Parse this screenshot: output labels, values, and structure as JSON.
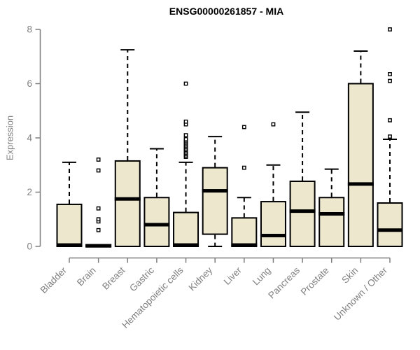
{
  "header": {
    "title": "ENSG00000261857 - MIA"
  },
  "colors": {
    "background": "#ffffff",
    "box_fill": "#EDE8CD",
    "box_border": "#000000",
    "median": "#000000",
    "whisker": "#000000",
    "outlier_stroke": "#000000",
    "outlier_fill": "#ffffff",
    "axis": "#7e7e7e",
    "tick_label": "#7f7f7f",
    "title_color": "#000000"
  },
  "chart_data": {
    "type": "boxplot",
    "title": "ENSG00000261857 - MIA",
    "xlabel": "",
    "ylabel": "Expression",
    "ylim": [
      0,
      8
    ],
    "yticks": [
      0,
      2,
      4,
      6,
      8
    ],
    "grid": false,
    "legend": "none",
    "categories": [
      "Bladder",
      "Brain",
      "Breast",
      "Gastric",
      "Hematopoietic cells",
      "Kidney",
      "Liver",
      "Lung",
      "Pancreas",
      "Prostate",
      "Skin",
      "Unknown / Other"
    ],
    "boxes": [
      {
        "category": "Bladder",
        "whisker_low": 0,
        "q1": 0,
        "median": 0.05,
        "q3": 1.55,
        "whisker_high": 3.1,
        "outliers": []
      },
      {
        "category": "Brain",
        "whisker_low": 0,
        "q1": 0,
        "median": 0.02,
        "q3": 0.06,
        "whisker_high": 0.06,
        "outliers": [
          0.6,
          0.92,
          1.0,
          1.4,
          2.8,
          3.2
        ]
      },
      {
        "category": "Breast",
        "whisker_low": 0,
        "q1": 0,
        "median": 1.75,
        "q3": 3.15,
        "whisker_high": 7.25,
        "outliers": []
      },
      {
        "category": "Gastric",
        "whisker_low": 0,
        "q1": 0,
        "median": 0.8,
        "q3": 1.8,
        "whisker_high": 3.6,
        "outliers": []
      },
      {
        "category": "Hematopoietic cells",
        "whisker_low": 0,
        "q1": 0,
        "median": 0.05,
        "q3": 1.25,
        "whisker_high": 3.1,
        "outliers": [
          3.3,
          3.35,
          3.4,
          3.45,
          3.5,
          3.55,
          3.6,
          3.65,
          3.7,
          3.75,
          3.8,
          3.85,
          3.9,
          3.95,
          4.1,
          4.5,
          4.6,
          6.0
        ]
      },
      {
        "category": "Kidney",
        "whisker_low": 0,
        "q1": 0.45,
        "median": 2.05,
        "q3": 2.9,
        "whisker_high": 4.05,
        "outliers": []
      },
      {
        "category": "Liver",
        "whisker_low": 0,
        "q1": 0,
        "median": 0.05,
        "q3": 1.05,
        "whisker_high": 1.8,
        "outliers": [
          2.9,
          4.4
        ]
      },
      {
        "category": "Lung",
        "whisker_low": 0,
        "q1": 0,
        "median": 0.4,
        "q3": 1.65,
        "whisker_high": 3.0,
        "outliers": [
          4.5
        ]
      },
      {
        "category": "Pancreas",
        "whisker_low": 0,
        "q1": 0,
        "median": 1.3,
        "q3": 2.4,
        "whisker_high": 4.95,
        "outliers": []
      },
      {
        "category": "Prostate",
        "whisker_low": 0,
        "q1": 0,
        "median": 1.2,
        "q3": 1.8,
        "whisker_high": 2.85,
        "outliers": []
      },
      {
        "category": "Skin",
        "whisker_low": 0,
        "q1": 0,
        "median": 2.3,
        "q3": 6.0,
        "whisker_high": 7.2,
        "outliers": []
      },
      {
        "category": "Unknown / Other",
        "whisker_low": 0,
        "q1": 0,
        "median": 0.6,
        "q3": 1.6,
        "whisker_high": 3.95,
        "outliers": [
          4.05,
          4.65,
          6.1,
          6.35,
          8.0
        ]
      }
    ]
  }
}
